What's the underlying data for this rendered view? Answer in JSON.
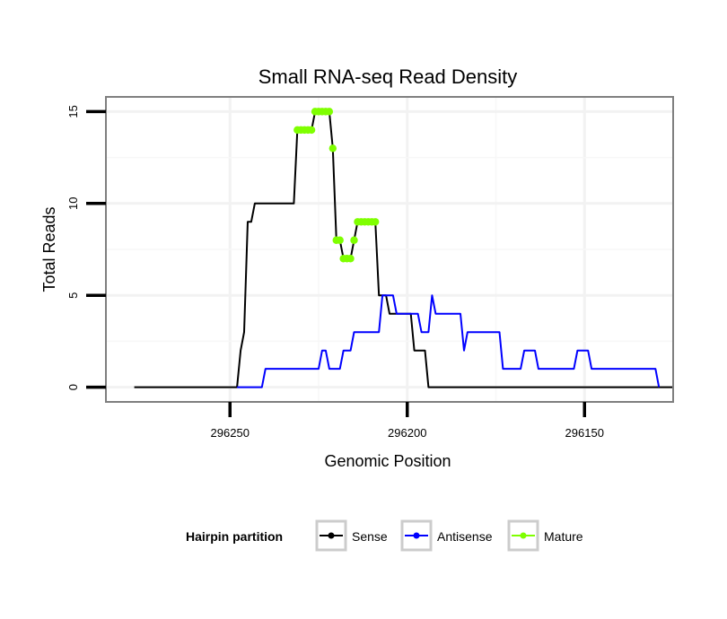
{
  "chart_data": {
    "type": "line",
    "title": "Small RNA-seq Read Density",
    "xlabel": "Genomic Position",
    "ylabel": "Total Reads",
    "xlim": [
      296285,
      296125
    ],
    "ylim": [
      -0.8,
      15.8
    ],
    "x_reversed": true,
    "xticks": [
      296250,
      296200,
      296150
    ],
    "xtick_labels": [
      "296250",
      "296200",
      "296150"
    ],
    "yticks": [
      0,
      5,
      10,
      15
    ],
    "ytick_labels": [
      "0",
      "5",
      "10",
      "15"
    ],
    "grid": true,
    "legend": {
      "title": "Hairpin partition",
      "position": "bottom",
      "entries": [
        "Sense",
        "Antisense",
        "Mature"
      ]
    },
    "series": [
      {
        "name": "Sense",
        "color": "#000000",
        "points": [
          [
            296277,
            0
          ],
          [
            296248,
            0
          ],
          [
            296247,
            2
          ],
          [
            296246,
            3
          ],
          [
            296245,
            9
          ],
          [
            296244,
            9
          ],
          [
            296243,
            10
          ],
          [
            296232,
            10
          ],
          [
            296231,
            14
          ],
          [
            296227,
            14
          ],
          [
            296226,
            15
          ],
          [
            296222,
            15
          ],
          [
            296221,
            13
          ],
          [
            296220,
            8
          ],
          [
            296219,
            8
          ],
          [
            296218,
            7
          ],
          [
            296216,
            7
          ],
          [
            296215,
            8
          ],
          [
            296214,
            9
          ],
          [
            296209,
            9
          ],
          [
            296208,
            5
          ],
          [
            296206,
            5
          ],
          [
            296205,
            4
          ],
          [
            296199,
            4
          ],
          [
            296198,
            2
          ],
          [
            296195,
            2
          ],
          [
            296194,
            0
          ],
          [
            296125,
            0
          ]
        ]
      },
      {
        "name": "Antisense",
        "color": "#0000ff",
        "points": [
          [
            296248,
            0
          ],
          [
            296241,
            0
          ],
          [
            296240,
            1
          ],
          [
            296225,
            1
          ],
          [
            296224,
            2
          ],
          [
            296223,
            2
          ],
          [
            296222,
            1
          ],
          [
            296219,
            1
          ],
          [
            296218,
            2
          ],
          [
            296216,
            2
          ],
          [
            296215,
            3
          ],
          [
            296208,
            3
          ],
          [
            296207,
            5
          ],
          [
            296204,
            5
          ],
          [
            296203,
            4
          ],
          [
            296197,
            4
          ],
          [
            296196,
            3
          ],
          [
            296194,
            3
          ],
          [
            296193,
            5
          ],
          [
            296192,
            4
          ],
          [
            296185,
            4
          ],
          [
            296184,
            2
          ],
          [
            296183,
            3
          ],
          [
            296174,
            3
          ],
          [
            296173,
            1
          ],
          [
            296168,
            1
          ],
          [
            296167,
            2
          ],
          [
            296164,
            2
          ],
          [
            296163,
            1
          ],
          [
            296153,
            1
          ],
          [
            296152,
            2
          ],
          [
            296149,
            2
          ],
          [
            296148,
            1
          ],
          [
            296130,
            1
          ],
          [
            296129,
            0
          ]
        ]
      },
      {
        "name": "Mature",
        "color": "#7fff00",
        "points": [
          [
            296231,
            14
          ],
          [
            296230,
            14
          ],
          [
            296229,
            14
          ],
          [
            296228,
            14
          ],
          [
            296227,
            14
          ],
          [
            296226,
            15
          ],
          [
            296225,
            15
          ],
          [
            296224,
            15
          ],
          [
            296223,
            15
          ],
          [
            296222,
            15
          ],
          [
            296221,
            13
          ],
          [
            296220,
            8
          ],
          [
            296219,
            8
          ],
          [
            296218,
            7
          ],
          [
            296217,
            7
          ],
          [
            296216,
            7
          ],
          [
            296215,
            8
          ],
          [
            296214,
            9
          ],
          [
            296213,
            9
          ],
          [
            296212,
            9
          ],
          [
            296211,
            9
          ],
          [
            296210,
            9
          ],
          [
            296209,
            9
          ]
        ]
      }
    ]
  }
}
